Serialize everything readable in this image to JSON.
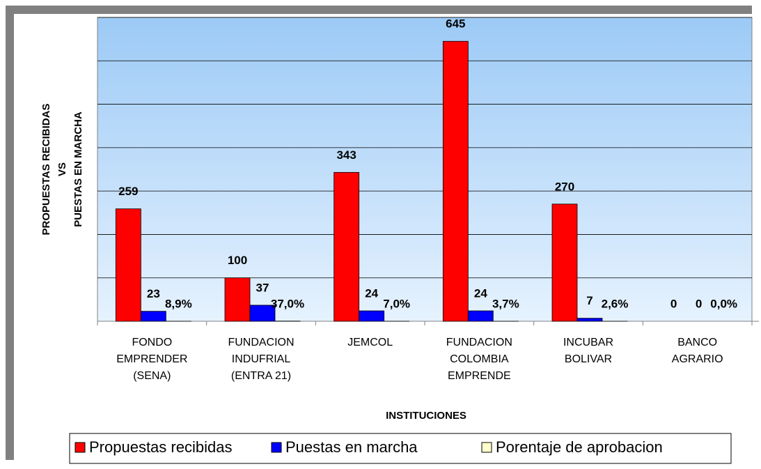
{
  "chart_data": {
    "type": "bar",
    "y_label": [
      "PROPUESTAS RECIBIDAS",
      "VS",
      "PUESTAS EN MARCHA"
    ],
    "x_label": "INSTITUCIONES",
    "categories": [
      [
        "FONDO",
        "EMPRENDER",
        "(SENA)"
      ],
      [
        "FUNDACION",
        "INDUFRIAL",
        "(ENTRA 21)"
      ],
      [
        "JEMCOL"
      ],
      [
        "FUNDACION",
        "COLOMBIA",
        "EMPRENDE"
      ],
      [
        "INCUBAR",
        "BOLIVAR"
      ],
      [
        "BANCO",
        "AGRARIO"
      ]
    ],
    "series": [
      {
        "name": "Propuestas recibidas",
        "color": "#ff0000",
        "values": [
          259,
          100,
          343,
          645,
          270,
          0
        ]
      },
      {
        "name": "Puestas en marcha",
        "color": "#0000ff",
        "values": [
          23,
          37,
          24,
          24,
          7,
          0
        ]
      },
      {
        "name": "Porentaje de aprobacion",
        "color": "#ffffcc",
        "values": [
          0.089,
          0.37,
          0.07,
          0.037,
          0.026,
          0.0
        ],
        "value_labels": [
          "8,9%",
          "37,0%",
          "7,0%",
          "3,7%",
          "2,6%",
          "0,0%"
        ]
      }
    ],
    "ylim": [
      0,
      700
    ],
    "yticks": [
      0,
      100,
      200,
      300,
      400,
      500,
      600,
      700
    ],
    "grid": true
  }
}
